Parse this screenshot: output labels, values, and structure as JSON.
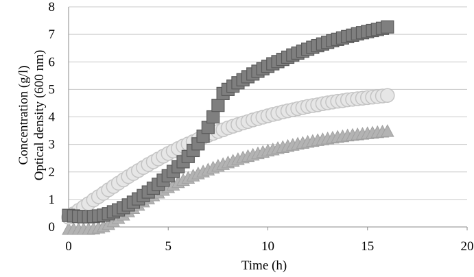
{
  "chart_data": {
    "type": "scatter",
    "title": "",
    "xlabel": "Time (h)",
    "ylabel_lines": [
      "Concentration (g/l)",
      "Optical density (600 nm)"
    ],
    "xlim": [
      0,
      20
    ],
    "ylim": [
      0,
      8
    ],
    "xticks": [
      0,
      5,
      10,
      15,
      20
    ],
    "yticks": [
      0,
      1,
      2,
      3,
      4,
      5,
      6,
      7,
      8
    ],
    "grid": "horizontal",
    "legend": "none",
    "series": [
      {
        "marker": "square",
        "color": "#7f7f7f",
        "x": [
          0,
          0.25,
          0.5,
          0.75,
          1,
          1.25,
          1.5,
          1.75,
          2,
          2.25,
          2.5,
          2.75,
          3,
          3.25,
          3.5,
          3.75,
          4,
          4.25,
          4.5,
          4.75,
          5,
          5.25,
          5.5,
          5.75,
          6,
          6.25,
          6.5,
          6.75,
          7,
          7.25,
          7.5,
          7.75,
          8,
          8.25,
          8.5,
          8.75,
          9,
          9.25,
          9.5,
          9.75,
          10,
          10.25,
          10.5,
          10.75,
          11,
          11.25,
          11.5,
          11.75,
          12,
          12.25,
          12.5,
          12.75,
          13,
          13.25,
          13.5,
          13.75,
          14,
          14.25,
          14.5,
          14.75,
          15,
          15.25,
          15.5,
          15.75,
          16
        ],
        "y": [
          0.42,
          0.4,
          0.38,
          0.37,
          0.37,
          0.38,
          0.4,
          0.43,
          0.48,
          0.55,
          0.62,
          0.7,
          0.8,
          0.9,
          1.02,
          1.14,
          1.27,
          1.41,
          1.55,
          1.7,
          1.86,
          2.02,
          2.19,
          2.37,
          2.56,
          2.78,
          3.02,
          3.3,
          3.62,
          4.0,
          4.42,
          4.85,
          5.0,
          5.12,
          5.24,
          5.35,
          5.46,
          5.56,
          5.66,
          5.75,
          5.84,
          5.93,
          6.01,
          6.09,
          6.17,
          6.25,
          6.32,
          6.39,
          6.46,
          6.53,
          6.59,
          6.65,
          6.71,
          6.77,
          6.82,
          6.87,
          6.92,
          6.97,
          7.02,
          7.06,
          7.1,
          7.14,
          7.18,
          7.22,
          7.27
        ]
      },
      {
        "marker": "circle",
        "color": "#e6e6e6",
        "stroke": "#c4c4c4",
        "x": [
          0,
          0.25,
          0.5,
          0.75,
          1,
          1.25,
          1.5,
          1.75,
          2,
          2.25,
          2.5,
          2.75,
          3,
          3.25,
          3.5,
          3.75,
          4,
          4.25,
          4.5,
          4.75,
          5,
          5.25,
          5.5,
          5.75,
          6,
          6.25,
          6.5,
          6.75,
          7,
          7.25,
          7.5,
          7.75,
          8,
          8.25,
          8.5,
          8.75,
          9,
          9.25,
          9.5,
          9.75,
          10,
          10.25,
          10.5,
          10.75,
          11,
          11.25,
          11.5,
          11.75,
          12,
          12.25,
          12.5,
          12.75,
          13,
          13.25,
          13.5,
          13.75,
          14,
          14.25,
          14.5,
          14.75,
          15,
          15.25,
          15.5,
          15.75,
          16
        ],
        "y": [
          0.35,
          0.48,
          0.6,
          0.72,
          0.85,
          0.98,
          1.1,
          1.22,
          1.35,
          1.47,
          1.59,
          1.71,
          1.83,
          1.94,
          2.05,
          2.16,
          2.27,
          2.37,
          2.47,
          2.57,
          2.67,
          2.76,
          2.85,
          2.94,
          3.02,
          3.1,
          3.18,
          3.26,
          3.33,
          3.4,
          3.47,
          3.53,
          3.6,
          3.66,
          3.72,
          3.78,
          3.83,
          3.89,
          3.94,
          3.99,
          4.04,
          4.09,
          4.13,
          4.18,
          4.22,
          4.26,
          4.3,
          4.34,
          4.38,
          4.41,
          4.44,
          4.48,
          4.51,
          4.54,
          4.57,
          4.59,
          4.62,
          4.64,
          4.66,
          4.68,
          4.7,
          4.72,
          4.74,
          4.76,
          4.78
        ]
      },
      {
        "marker": "triangle",
        "color": "#b3b3b3",
        "x": [
          0,
          0.25,
          0.5,
          0.75,
          1,
          1.25,
          1.5,
          1.75,
          2,
          2.25,
          2.5,
          2.75,
          3,
          3.25,
          3.5,
          3.75,
          4,
          4.25,
          4.5,
          4.75,
          5,
          5.25,
          5.5,
          5.75,
          6,
          6.25,
          6.5,
          6.75,
          7,
          7.25,
          7.5,
          7.75,
          8,
          8.25,
          8.5,
          8.75,
          9,
          9.25,
          9.5,
          9.75,
          10,
          10.25,
          10.5,
          10.75,
          11,
          11.25,
          11.5,
          11.75,
          12,
          12.25,
          12.5,
          12.75,
          13,
          13.25,
          13.5,
          13.75,
          14,
          14.25,
          14.5,
          14.75,
          15,
          15.25,
          15.5,
          15.75,
          16
        ],
        "y": [
          -0.1,
          -0.1,
          -0.1,
          -0.1,
          -0.1,
          -0.08,
          -0.05,
          0.0,
          0.08,
          0.18,
          0.3,
          0.42,
          0.54,
          0.66,
          0.78,
          0.9,
          1.01,
          1.12,
          1.22,
          1.32,
          1.42,
          1.51,
          1.6,
          1.68,
          1.76,
          1.84,
          1.92,
          1.99,
          2.06,
          2.13,
          2.2,
          2.26,
          2.32,
          2.38,
          2.44,
          2.5,
          2.55,
          2.6,
          2.65,
          2.7,
          2.75,
          2.79,
          2.84,
          2.88,
          2.92,
          2.96,
          3.0,
          3.03,
          3.07,
          3.1,
          3.13,
          3.16,
          3.19,
          3.22,
          3.25,
          3.27,
          3.3,
          3.32,
          3.34,
          3.36,
          3.38,
          3.4,
          3.42,
          3.44,
          3.46
        ]
      }
    ]
  }
}
